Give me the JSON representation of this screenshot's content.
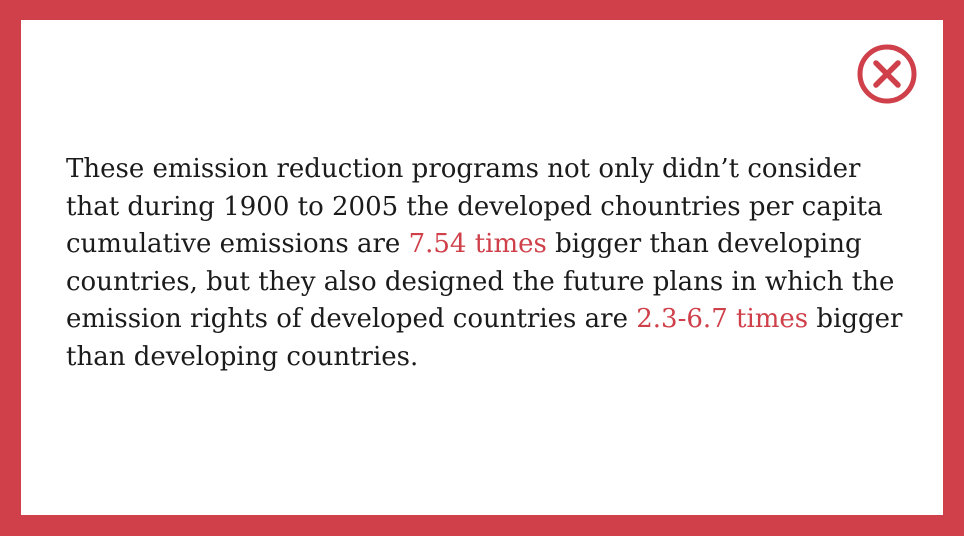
{
  "colors": {
    "frame": "#cf404a",
    "panel": "#ffffff",
    "text": "#1b1b1b",
    "highlight": "#cf404a"
  },
  "close_button": {
    "icon": "close-circle-icon"
  },
  "message": {
    "part1": "These emission reduction programs not only didn’t consider that during 1900 to 2005 the developed chountries per capita cumulative emissions are ",
    "highlight1": "7.54 times",
    "part2": " bigger than developing countries, but they also designed the future plans in which the emission rights of developed countries are ",
    "highlight2": "2.3-6.7 times",
    "part3": " bigger than developing countries."
  }
}
